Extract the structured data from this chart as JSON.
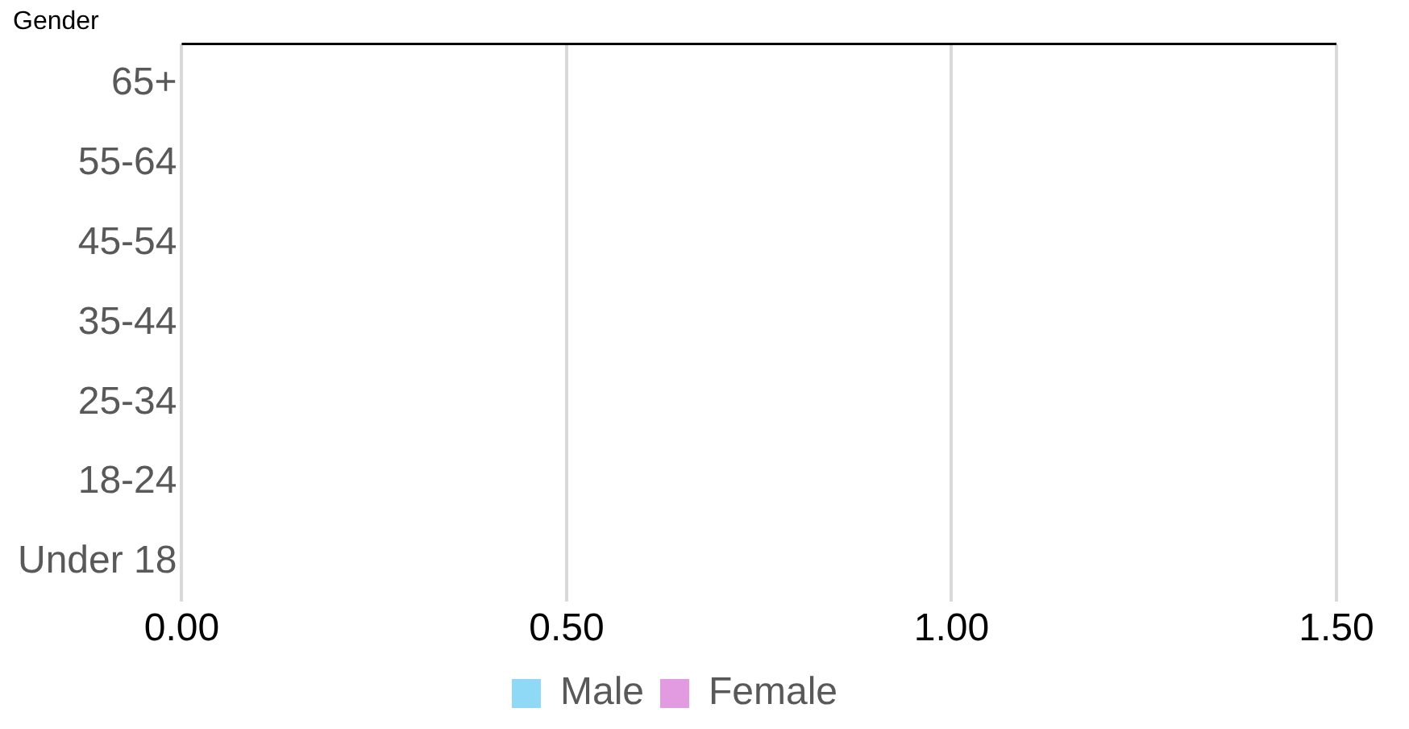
{
  "chart_data": {
    "type": "bar",
    "orientation": "horizontal",
    "title": "Gender",
    "categories": [
      "65+",
      "55-64",
      "45-54",
      "35-44",
      "25-34",
      "18-24",
      "Under 18"
    ],
    "series": [
      {
        "name": "Male",
        "color": "#8fd9f7",
        "values": [
          null,
          null,
          null,
          null,
          null,
          null,
          null
        ]
      },
      {
        "name": "Female",
        "color": "#e29be0",
        "values": [
          null,
          null,
          null,
          null,
          null,
          null,
          null
        ]
      }
    ],
    "xlim": [
      0,
      1.5
    ],
    "xticks": [
      {
        "value": 0,
        "label": "0.00"
      },
      {
        "value": 0.5,
        "label": "0.50"
      },
      {
        "value": 1,
        "label": "1.00"
      },
      {
        "value": 1.5,
        "label": "1.50"
      }
    ],
    "grid": "x",
    "legend": "bottom"
  }
}
